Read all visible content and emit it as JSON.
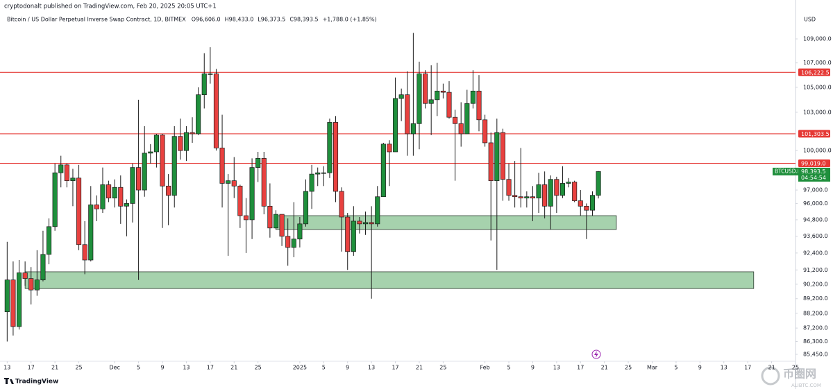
{
  "header": {
    "published": "cryptodonalt published on TradingView.com, Feb 20, 2025 20:05 UTC+1",
    "symbol": "Bitcoin / US Dollar Perpetual Inverse Swap Contract, 1D, BITMEX",
    "ohlc": [
      "O96,606.0",
      "H98,433.0",
      "L96,373.5",
      "C98,393.5"
    ],
    "change": "+1,788.0 (+1.85%)"
  },
  "brand": "TradingView",
  "watermark": {
    "name": "币圈网",
    "site": "ALIBTC.COM"
  },
  "chart_data": {
    "type": "candlestick",
    "log_scale": true,
    "y_axis_label": "USD",
    "up_color": "#1f8f3c",
    "down_color": "#e8413f",
    "line_color": "#e53935",
    "zone_color": "#a6d2ad",
    "xlim": [
      -1.2,
      132
    ],
    "ylim": [
      85040,
      111720
    ],
    "xticks": [
      {
        "value": 0,
        "label": "13"
      },
      {
        "value": 4,
        "label": "17"
      },
      {
        "value": 8,
        "label": "21"
      },
      {
        "value": 12,
        "label": "25"
      },
      {
        "value": 18,
        "label": "Dec"
      },
      {
        "value": 22,
        "label": "5"
      },
      {
        "value": 26,
        "label": "9"
      },
      {
        "value": 30,
        "label": "13"
      },
      {
        "value": 34,
        "label": "17"
      },
      {
        "value": 38,
        "label": "21"
      },
      {
        "value": 42,
        "label": "25"
      },
      {
        "value": 49,
        "label": "2025"
      },
      {
        "value": 53,
        "label": "5"
      },
      {
        "value": 57,
        "label": "9"
      },
      {
        "value": 61,
        "label": "13"
      },
      {
        "value": 65,
        "label": "17"
      },
      {
        "value": 69,
        "label": "21"
      },
      {
        "value": 73,
        "label": "25"
      },
      {
        "value": 80,
        "label": "Feb"
      },
      {
        "value": 84,
        "label": "5"
      },
      {
        "value": 88,
        "label": "9"
      },
      {
        "value": 92,
        "label": "13"
      },
      {
        "value": 96,
        "label": "17"
      },
      {
        "value": 100,
        "label": "21"
      },
      {
        "value": 104,
        "label": "25"
      },
      {
        "value": 108,
        "label": "Mar"
      },
      {
        "value": 112,
        "label": "5"
      },
      {
        "value": 116,
        "label": "9"
      },
      {
        "value": 120,
        "label": "13"
      },
      {
        "value": 124,
        "label": "17"
      },
      {
        "value": 128,
        "label": "21"
      },
      {
        "value": 132,
        "label": "25"
      }
    ],
    "yticks": [
      {
        "value": 109000,
        "label": "109,000.0"
      },
      {
        "value": 107000,
        "label": "107,000.0"
      },
      {
        "value": 105000,
        "label": "105,000.0"
      },
      {
        "value": 103000,
        "label": "103,000.0"
      },
      {
        "value": 100000,
        "label": "100,000.0"
      },
      {
        "value": 97000,
        "label": "97,000.0"
      },
      {
        "value": 96000,
        "label": "96,000.0"
      },
      {
        "value": 94800,
        "label": "94,800.0"
      },
      {
        "value": 93600,
        "label": "93,600.0"
      },
      {
        "value": 92400,
        "label": "92,400.0"
      },
      {
        "value": 91200,
        "label": "91,200.0"
      },
      {
        "value": 90200,
        "label": "90,200.0"
      },
      {
        "value": 89200,
        "label": "89,200.0"
      },
      {
        "value": 88200,
        "label": "88,200.0"
      },
      {
        "value": 87200,
        "label": "87,200.0"
      },
      {
        "value": 86300,
        "label": "86,300.0"
      },
      {
        "value": 85450,
        "label": "85,450.0"
      }
    ],
    "hlines": [
      {
        "value": 106222.5,
        "label": "106,222.5"
      },
      {
        "value": 101303.5,
        "label": "101,303.5"
      },
      {
        "value": 99019,
        "label": "99,019.0"
      }
    ],
    "zones": [
      {
        "x": [
          45,
          102
        ],
        "y": [
          94090,
          95100
        ]
      },
      {
        "x": [
          3,
          125
        ],
        "y": [
          89900,
          91070
        ]
      }
    ],
    "price_tag": {
      "symbol": "BTCUSD.P",
      "price": "98,393.5",
      "countdown": "04:54:54"
    },
    "x": [
      0,
      1,
      2,
      3,
      4,
      5,
      6,
      7,
      8,
      9,
      10,
      11,
      12,
      13,
      14,
      15,
      16,
      17,
      18,
      19,
      20,
      21,
      22,
      23,
      24,
      25,
      26,
      27,
      28,
      29,
      30,
      31,
      32,
      33,
      34,
      35,
      36,
      37,
      38,
      39,
      40,
      41,
      42,
      43,
      44,
      45,
      46,
      47,
      48,
      49,
      50,
      51,
      52,
      53,
      54,
      55,
      56,
      57,
      58,
      59,
      60,
      61,
      62,
      63,
      64,
      65,
      66,
      67,
      68,
      69,
      70,
      71,
      72,
      73,
      74,
      75,
      76,
      77,
      78,
      79,
      80,
      81,
      82,
      83,
      84,
      85,
      86,
      87,
      88,
      89,
      90,
      91,
      92,
      93,
      94,
      95,
      96,
      97,
      98,
      99
    ],
    "open": [
      88300,
      90500,
      87300,
      91000,
      90600,
      89800,
      90500,
      92300,
      94300,
      98300,
      98900,
      97700,
      97900,
      93000,
      91900,
      95900,
      95600,
      97400,
      96400,
      97200,
      95800,
      96000,
      98700,
      97000,
      99800,
      99900,
      101200,
      97300,
      96600,
      101100,
      100000,
      101400,
      101300,
      104400,
      106100,
      106100,
      100200,
      97500,
      97700,
      97300,
      95100,
      94800,
      98700,
      99400,
      95800,
      94200,
      95200,
      93600,
      92800,
      93400,
      94500,
      96900,
      98200,
      98300,
      98300,
      102200,
      96900,
      95000,
      92500,
      94700,
      94500,
      94600,
      94500,
      96500,
      100500,
      99900,
      104100,
      104400,
      101300,
      102100,
      106100,
      103700,
      104000,
      104700,
      104600,
      102600,
      102100,
      101300,
      103700,
      104700,
      102400,
      100600,
      97700,
      101400,
      97800,
      96600,
      96500,
      96400,
      96500,
      96400,
      97400,
      95800,
      97800,
      96600,
      97500,
      97600,
      96200,
      95800,
      95500,
      96606
    ],
    "high": [
      93200,
      91800,
      91900,
      91800,
      91400,
      92600,
      94000,
      94900,
      99000,
      99600,
      99000,
      98600,
      98900,
      94700,
      97300,
      96600,
      98700,
      97700,
      97800,
      98100,
      96300,
      99000,
      104000,
      101900,
      100500,
      101300,
      101300,
      98200,
      101900,
      102500,
      101900,
      102600,
      105000,
      107800,
      108300,
      106500,
      102800,
      98200,
      99500,
      97400,
      96400,
      99400,
      99900,
      99900,
      97500,
      95500,
      95200,
      94900,
      96100,
      95000,
      97800,
      98900,
      98700,
      98800,
      102500,
      102700,
      97200,
      95300,
      95800,
      95000,
      95400,
      95800,
      97300,
      100600,
      100800,
      105800,
      104900,
      106300,
      109500,
      107100,
      106400,
      106800,
      107000,
      105300,
      105500,
      103200,
      103800,
      104800,
      106400,
      106000,
      102800,
      101400,
      102500,
      101700,
      99000,
      99200,
      100200,
      96900,
      97300,
      98300,
      98400,
      98100,
      98000,
      98800,
      97900,
      97700,
      97000,
      96000,
      96900,
      98433
    ],
    "low": [
      86300,
      86700,
      87100,
      90100,
      88800,
      89400,
      90400,
      91600,
      94000,
      97200,
      97200,
      95800,
      92600,
      90900,
      91800,
      94700,
      95300,
      96100,
      95700,
      94500,
      93600,
      94600,
      90500,
      96500,
      99000,
      98700,
      94200,
      94400,
      95700,
      99300,
      99200,
      100600,
      101200,
      103300,
      105300,
      100000,
      95700,
      92200,
      96400,
      94200,
      92400,
      93400,
      97600,
      95200,
      93500,
      94100,
      92900,
      91500,
      92100,
      92800,
      94300,
      95600,
      97300,
      97300,
      97900,
      96100,
      92500,
      91200,
      92200,
      93800,
      93700,
      89200,
      94300,
      96500,
      97300,
      99900,
      102300,
      99600,
      99600,
      100100,
      103300,
      101200,
      102700,
      104100,
      102500,
      97700,
      100300,
      101300,
      103300,
      101500,
      100300,
      93300,
      91200,
      96200,
      96200,
      95700,
      95700,
      95700,
      94700,
      95300,
      94900,
      94100,
      95300,
      96400,
      97200,
      96100,
      95100,
      93400,
      95100,
      96373.5
    ],
    "close": [
      90500,
      87300,
      91000,
      90600,
      89800,
      90500,
      92300,
      94300,
      98300,
      98900,
      97700,
      97900,
      93000,
      91900,
      95900,
      95600,
      97400,
      96400,
      97200,
      95800,
      96000,
      98700,
      97000,
      99800,
      99900,
      101200,
      97300,
      96600,
      101100,
      100000,
      101400,
      101300,
      104400,
      106100,
      106100,
      100200,
      97500,
      97700,
      97300,
      95100,
      94800,
      98700,
      99400,
      95800,
      94200,
      95200,
      93600,
      92800,
      93400,
      94500,
      96900,
      98200,
      98300,
      98300,
      102200,
      96900,
      95000,
      92500,
      94700,
      94500,
      94600,
      94500,
      96500,
      100500,
      99900,
      104100,
      104400,
      101300,
      102100,
      106100,
      103700,
      104000,
      104700,
      104600,
      102600,
      102100,
      101300,
      103700,
      104700,
      102400,
      100600,
      97700,
      101400,
      97800,
      96600,
      96500,
      96400,
      96500,
      96400,
      97400,
      95800,
      97800,
      96600,
      97500,
      97600,
      96200,
      95800,
      95500,
      96605.5,
      98393.5
    ]
  }
}
